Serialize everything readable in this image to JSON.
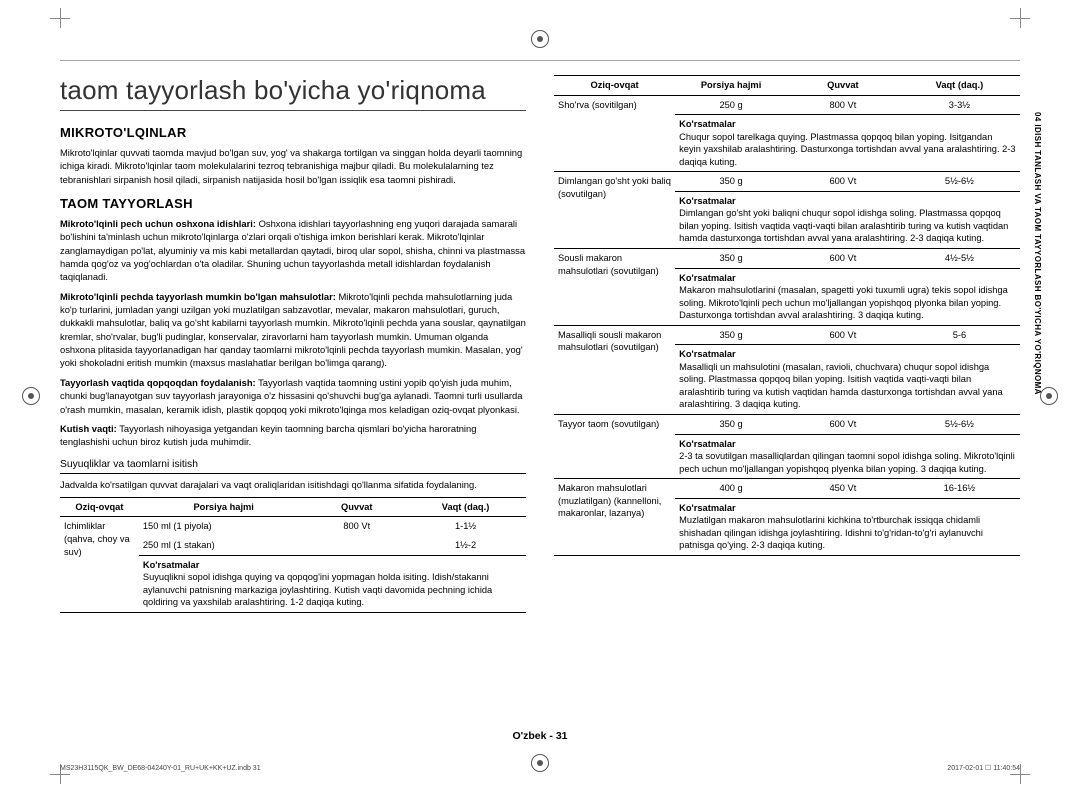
{
  "main_title": "taom tayyorlash bo'yicha yo'riqnoma",
  "side_tab": "04  IDISH TANLASH VA TAOM TAYYORLASH BO'YICHA YO'RIQNOMA",
  "section_mikro": {
    "heading": "MIKROTO'LQINLAR",
    "para": "Mikroto'lqinlar quvvati taomda mavjud bo'lgan suv, yog' va shakarga tortilgan va singgan holda deyarli taomning ichiga kiradi. Mikroto'lqinlar taom molekulalarini tezroq tebranishiga majbur qiladi. Bu molekulalarning tez tebranishlari sirpanish hosil qiladi, sirpanish natijasida hosil bo'lgan issiqlik esa taomni pishiradi."
  },
  "section_taom": {
    "heading": "TAOM TAYYORLASH",
    "p1_bold": "Mikroto'lqinli pech uchun oshxona idishlari:",
    "p1_rest": " Oshxona idishlari tayyorlashning eng yuqori darajada samarali bo'lishini ta'minlash uchun mikroto'lqinlarga o'zlari orqali o'tishiga imkon berishlari kerak. Mikroto'lqinlar zanglamaydigan po'lat, alyuminiy va mis kabi metallardan qaytadi, biroq ular sopol, shisha, chinni va plastmassa hamda qog'oz va yog'ochlardan o'ta oladilar. Shuning uchun tayyorlashda metall idishlardan foydalanish taqiqlanadi.",
    "p2_bold": "Mikroto'lqinli pechda tayyorlash mumkin bo'lgan mahsulotlar:",
    "p2_rest": " Mikroto'lqinli pechda mahsulotlarning juda ko'p turlarini, jumladan yangi uzilgan yoki muzlatilgan sabzavotlar, mevalar, makaron mahsulotlari, guruch, dukkakli mahsulotlar, baliq va go'sht kabilarni tayyorlash mumkin. Mikroto'lqinli pechda yana souslar, qaynatilgan kremlar, sho'rvalar, bug'li pudinglar, konservalar, ziravorlarni ham tayyorlash mumkin. Umuman olganda oshxona plitasida tayyorlanadigan har qanday taomlarni mikroto'lqinli pechda tayyorlash mumkin. Masalan, yog' yoki shokoladni eritish mumkin (maxsus maslahatlar berilgan bo'limga qarang).",
    "p3_bold": "Tayyorlash vaqtida qopqoqdan foydalanish:",
    "p3_rest": " Tayyorlash vaqtida taomning ustini yopib qo'yish juda muhim, chunki bug'lanayotgan suv tayyorlash jarayoniga o'z hissasini qo'shuvchi bug'ga aylanadi. Taomni turli usullarda o'rash mumkin, masalan, keramik idish, plastik qopqoq yoki mikroto'lqinga mos keladigan oziq-ovqat plyonkasi.",
    "p4_bold": "Kutish vaqti:",
    "p4_rest": " Tayyorlash nihoyasiga yetgandan keyin taomning barcha qismlari bo'yicha haroratning tenglashishi uchun biroz kutish juda muhimdir."
  },
  "liquids": {
    "heading": "Suyuqliklar va taomlarni isitish",
    "note": "Jadvalda ko'rsatilgan quvvat darajalari va vaqt oraliqlaridan isitishdagi qo'llanma sifatida foydalaning.",
    "headers": [
      "Oziq-ovqat",
      "Porsiya hajmi",
      "Quvvat",
      "Vaqt (daq.)"
    ],
    "row_food": "Ichimliklar (qahva, choy va suv)",
    "row_serv1": "150 ml (1 piyola)",
    "row_serv2": "250 ml (1 stakan)",
    "row_power": "800 Vt",
    "row_time1": "1-1½",
    "row_time2": "1½-2",
    "instr_label": "Ko'rsatmalar",
    "instr": "Suyuqlikni sopol idishga quying va qopqog'ini yopmagan holda isiting. Idish/stakanni aylanuvchi patnisning markaziga joylashtiring. Kutish vaqti davomida pechning ichida qoldiring va yaxshilab aralashtiring. 1-2 daqiqa kuting."
  },
  "right_table": {
    "headers": [
      "Oziq-ovqat",
      "Porsiya hajmi",
      "Quvvat",
      "Vaqt (daq.)"
    ],
    "instr_label": "Ko'rsatmalar",
    "rows": [
      {
        "food": "Sho'rva (sovitilgan)",
        "serv": "250 g",
        "power": "800 Vt",
        "time": "3-3½",
        "instr": "Chuqur sopol tarelkaga quying. Plastmassa qopqoq bilan yoping. Isitgandan keyin yaxshilab aralashtiring. Dasturxonga tortishdan avval yana aralashtiring. 2-3 daqiqa kuting."
      },
      {
        "food": "Dimlangan go'sht yoki baliq (sovutilgan)",
        "serv": "350 g",
        "power": "600 Vt",
        "time": "5½-6½",
        "instr": "Dimlangan go'sht yoki baliqni chuqur sopol idishga soling. Plastmassa qopqoq bilan yoping. Isitish vaqtida vaqti-vaqti bilan aralashtirib turing va kutish vaqtidan hamda dasturxonga tortishdan avval yana aralashtiring. 2-3 daqiqa kuting."
      },
      {
        "food": "Sousli makaron mahsulotlari (sovutilgan)",
        "serv": "350 g",
        "power": "600 Vt",
        "time": "4½-5½",
        "instr": "Makaron mahsulotlarini (masalan, spagetti yoki tuxumli ugra) tekis sopol idishga soling. Mikroto'lqinli pech uchun mo'ljallangan yopishqoq plyonka bilan yoping. Dasturxonga tortishdan avval aralashtiring. 3 daqiqa kuting."
      },
      {
        "food": "Masalliqli sousli makaron mahsulotlari (sovutilgan)",
        "serv": "350 g",
        "power": "600 Vt",
        "time": "5-6",
        "instr": "Masalliqli un mahsulotini (masalan, ravioli, chuchvara) chuqur sopol idishga soling. Plastmassa qopqoq bilan yoping. Isitish vaqtida vaqti-vaqti bilan aralashtirib turing va kutish vaqtidan hamda dasturxonga tortishdan avval yana aralashtiring. 3 daqiqa kuting."
      },
      {
        "food": "Tayyor taom (sovutilgan)",
        "serv": "350 g",
        "power": "600 Vt",
        "time": "5½-6½",
        "instr": "2-3 ta sovutilgan masalliqlardan qilingan taomni sopol idishga soling. Mikroto'lqinli pech uchun mo'ljallangan yopishqoq plyenka bilan yoping. 3 daqiqa kuting."
      },
      {
        "food": "Makaron mahsulotlari (muzlatilgan) (kannelloni, makaronlar, lazanya)",
        "serv": "400 g",
        "power": "450 Vt",
        "time": "16-16½",
        "instr": "Muzlatilgan makaron mahsulotlarini kichkina to'rtburchak issiqqa chidamli shishadan qilingan idishga joylashtiring. Idishni to'g'ridan-to'g'ri aylanuvchi patnisga qo'ying. 2-3 daqiqa kuting."
      }
    ]
  },
  "pagenum": "O'zbek - 31",
  "footer_left": "MS23H3115QK_BW_DE68-04240Y-01_RU+UK+KK+UZ.indb   31",
  "footer_right": "2017-02-01   ☐ 11:40:54"
}
